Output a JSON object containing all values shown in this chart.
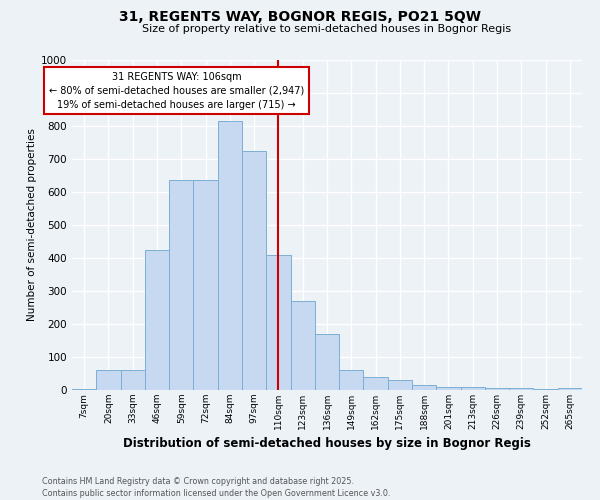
{
  "title": "31, REGENTS WAY, BOGNOR REGIS, PO21 5QW",
  "subtitle": "Size of property relative to semi-detached houses in Bognor Regis",
  "xlabel": "Distribution of semi-detached houses by size in Bognor Regis",
  "ylabel": "Number of semi-detached properties",
  "bar_labels": [
    "7sqm",
    "20sqm",
    "33sqm",
    "46sqm",
    "59sqm",
    "72sqm",
    "84sqm",
    "97sqm",
    "110sqm",
    "123sqm",
    "136sqm",
    "149sqm",
    "162sqm",
    "175sqm",
    "188sqm",
    "201sqm",
    "213sqm",
    "226sqm",
    "239sqm",
    "252sqm",
    "265sqm"
  ],
  "bar_values": [
    3,
    60,
    60,
    425,
    635,
    635,
    815,
    725,
    410,
    270,
    170,
    60,
    40,
    30,
    15,
    10,
    10,
    5,
    5,
    3,
    5
  ],
  "bar_color": "#c6d9f0",
  "bar_edge_color": "#7bafd4",
  "vline_x": 8.0,
  "vline_color": "#cc0000",
  "annotation_text": "31 REGENTS WAY: 106sqm\n← 80% of semi-detached houses are smaller (2,947)\n19% of semi-detached houses are larger (715) →",
  "annotation_box_color": "#ffffff",
  "annotation_box_edge": "#cc0000",
  "ylim": [
    0,
    1000
  ],
  "yticks": [
    0,
    100,
    200,
    300,
    400,
    500,
    600,
    700,
    800,
    900,
    1000
  ],
  "footnote": "Contains HM Land Registry data © Crown copyright and database right 2025.\nContains public sector information licensed under the Open Government Licence v3.0.",
  "bg_color": "#edf2f7",
  "grid_color": "#ffffff",
  "title_fontsize": 10,
  "subtitle_fontsize": 8
}
